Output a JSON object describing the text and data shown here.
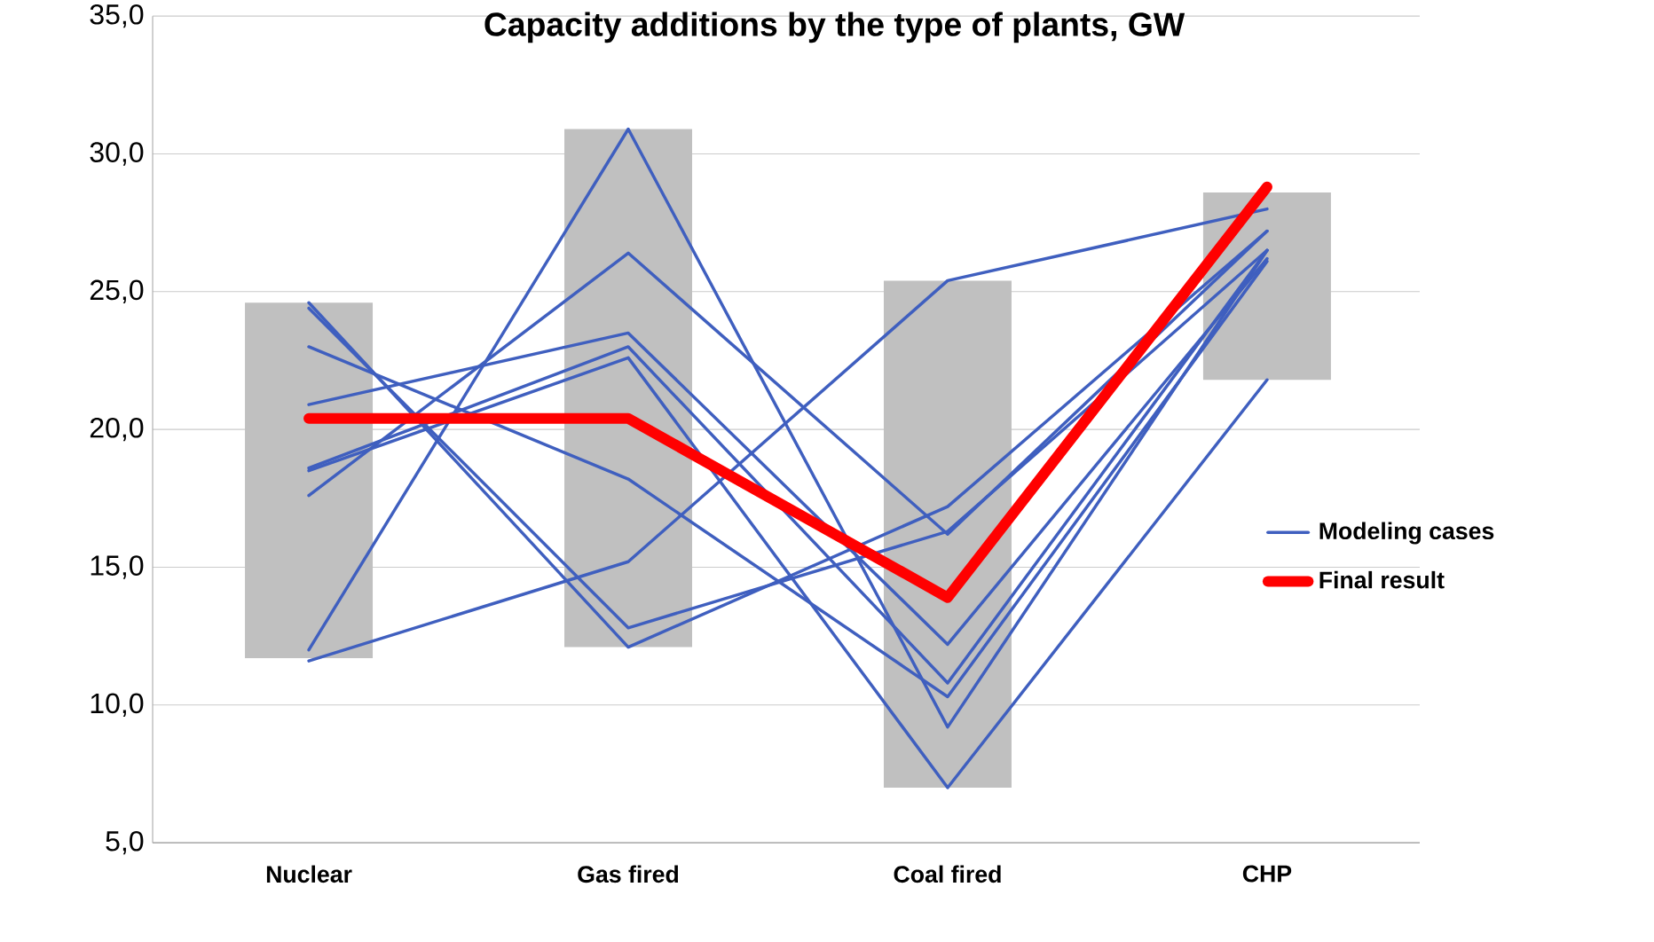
{
  "chart_data": {
    "type": "line",
    "title": "Capacity additions by the type of plants, GW",
    "categories": [
      "Nuclear",
      "Gas fired",
      "Coal fired",
      "CHP"
    ],
    "ylim": [
      5,
      35
    ],
    "yticks": [
      {
        "value": 5,
        "label": "5,0"
      },
      {
        "value": 10,
        "label": "10,0"
      },
      {
        "value": 15,
        "label": "15,0"
      },
      {
        "value": 20,
        "label": "20,0"
      },
      {
        "value": 25,
        "label": "25,0"
      },
      {
        "value": 30,
        "label": "30,0"
      },
      {
        "value": 35,
        "label": "35,0"
      }
    ],
    "grid": "y",
    "legend": "right",
    "line_style": "solid",
    "marker": "none",
    "series": [
      {
        "type": "bar",
        "color": "#c0c0c0",
        "base": [
          11.7,
          12.1,
          7.0,
          21.8
        ],
        "values": [
          12.9,
          18.8,
          18.4,
          6.8
        ]
      },
      {
        "name": "Modeling cases",
        "color": "#3f5fbf",
        "values": [
          11.6,
          15.2,
          25.4,
          28.0
        ]
      },
      {
        "color": "#3f5fbf",
        "values": [
          12.0,
          30.9,
          9.2,
          26.5
        ]
      },
      {
        "color": "#3f5fbf",
        "values": [
          24.6,
          12.1,
          17.2,
          27.2
        ]
      },
      {
        "color": "#3f5fbf",
        "values": [
          24.4,
          12.8,
          16.3,
          26.5
        ]
      },
      {
        "color": "#3f5fbf",
        "values": [
          23.0,
          18.2,
          10.3,
          26.1
        ]
      },
      {
        "color": "#3f5fbf",
        "values": [
          20.9,
          23.5,
          12.2,
          26.2
        ]
      },
      {
        "color": "#3f5fbf",
        "values": [
          18.6,
          23.0,
          10.8,
          26.5
        ]
      },
      {
        "color": "#3f5fbf",
        "values": [
          17.6,
          26.4,
          16.2,
          27.2
        ]
      },
      {
        "color": "#3f5fbf",
        "values": [
          18.5,
          22.6,
          7.0,
          21.8
        ]
      },
      {
        "name": "Final result",
        "color": "#ff0000",
        "values": [
          20.4,
          20.4,
          13.9,
          28.8
        ]
      }
    ]
  }
}
